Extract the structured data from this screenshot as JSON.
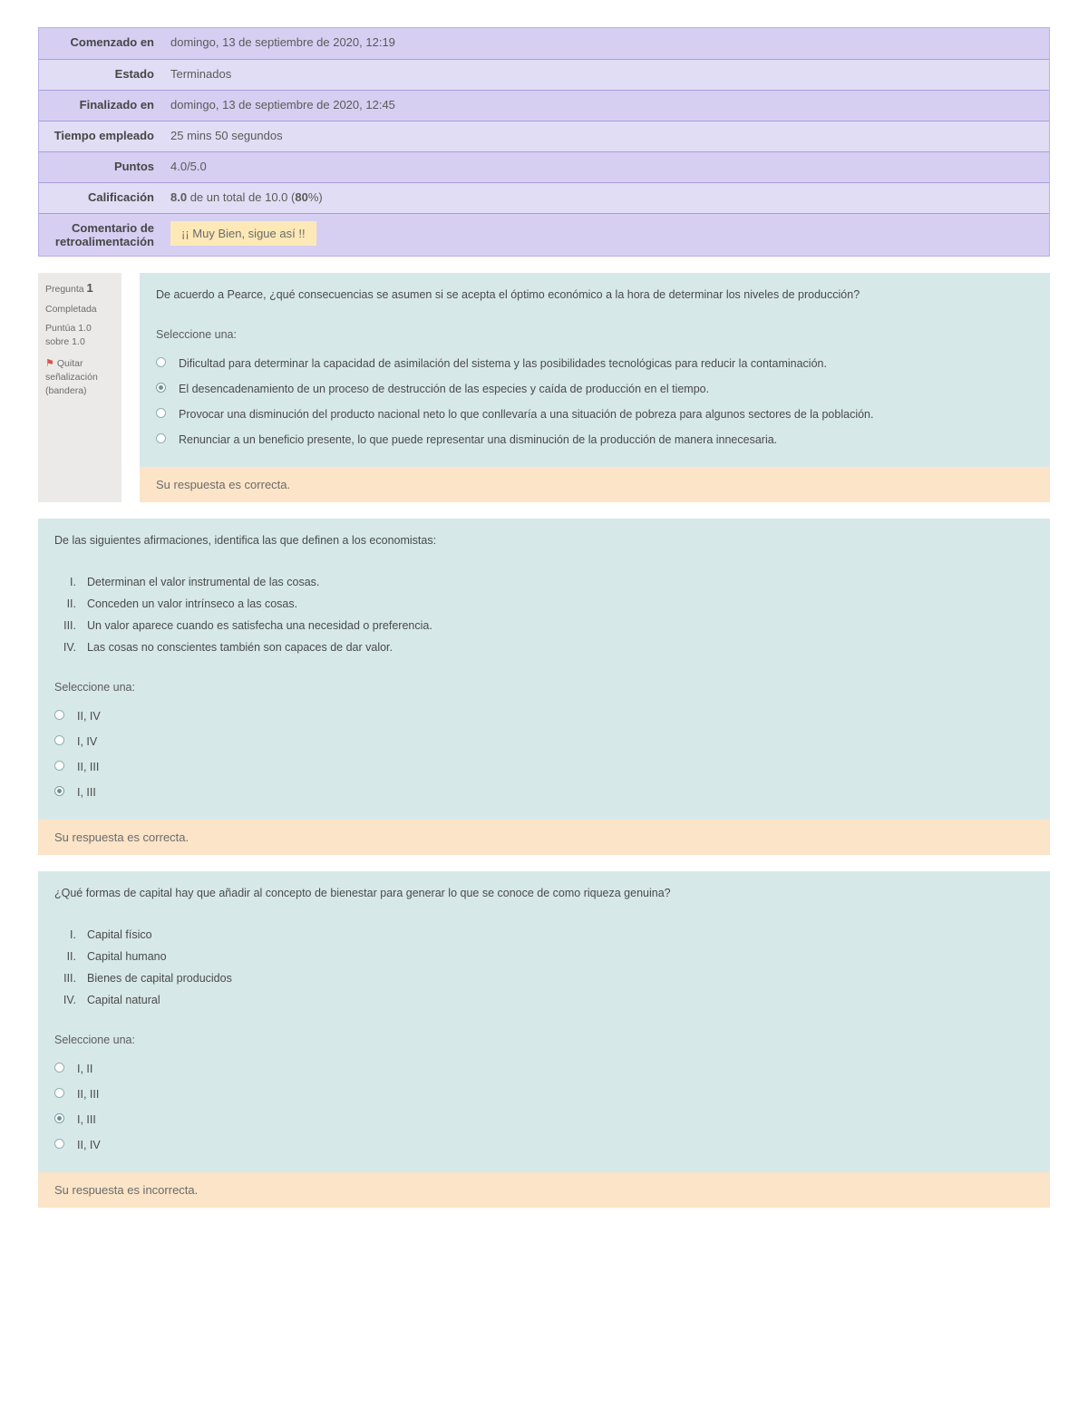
{
  "summary": {
    "rows": [
      {
        "label": "Comenzado en",
        "value": "domingo, 13 de septiembre de 2020, 12:19"
      },
      {
        "label": "Estado",
        "value": "Terminados"
      },
      {
        "label": "Finalizado en",
        "value": "domingo, 13 de septiembre de 2020, 12:45"
      },
      {
        "label": "Tiempo empleado",
        "value": "25 mins 50 segundos"
      },
      {
        "label": "Puntos",
        "value": "4.0/5.0"
      },
      {
        "label": "Calificación",
        "value_html": "<b>8.0</b> de un total de 10.0 (<b>80</b>%)"
      },
      {
        "label": "Comentario de retroalimentación",
        "chip": "¡¡ Muy Bien, sigue así !!"
      }
    ]
  },
  "select_one_label": "Seleccione una:",
  "q1": {
    "side": {
      "heading": "Pregunta",
      "num": "1",
      "state": "Completada",
      "grade": "Puntúa 1.0 sobre 1.0",
      "flag": "Quitar señalización (bandera)"
    },
    "prompt": "De acuerdo a Pearce, ¿qué consecuencias se asumen si se acepta el óptimo económico a la hora de determinar los niveles de producción?",
    "options": [
      "Dificultad para determinar la capacidad de asimilación del sistema y las posibilidades tecnológicas para reducir la contaminación.",
      "El desencadenamiento de un proceso de destrucción de las especies y caída de producción en el tiempo.",
      "Provocar una disminución del producto nacional neto lo que conllevaría a una situación de pobreza para algunos sectores de la población.",
      "Renunciar a un beneficio presente, lo que puede representar una disminución de la producción de manera innecesaria."
    ],
    "selected": 1,
    "feedback": "Su respuesta es correcta."
  },
  "q2": {
    "prompt": "De las siguientes afirmaciones, identifica las que definen a los economistas:",
    "statements": [
      "Determinan el valor instrumental de las cosas.",
      "Conceden un valor intrínseco a las cosas.",
      "Un valor aparece cuando es satisfecha una necesidad o preferencia.",
      "Las cosas no conscientes también son capaces de dar valor."
    ],
    "options": [
      "II, IV",
      "I, IV",
      "II, III",
      "I, III"
    ],
    "selected": 3,
    "feedback": "Su respuesta es correcta."
  },
  "q3": {
    "prompt": "¿Qué formas de capital hay que añadir al concepto de bienestar para generar lo que se conoce de como riqueza genuina?",
    "statements": [
      "Capital físico",
      "Capital humano",
      "Bienes de capital producidos",
      "Capital natural"
    ],
    "options": [
      "I, II",
      "II, III",
      "I, III",
      "II, IV"
    ],
    "selected": 2,
    "feedback": "Su respuesta es incorrecta."
  },
  "colors": {
    "summary_odd": "#d6cff2",
    "summary_even": "#e1ddf4",
    "summary_border": "#a89ddf",
    "chip_bg": "#fde9b7",
    "question_bg": "#d7e8e9",
    "feedback_bg": "#fbe4c7",
    "side_bg": "#eceae8",
    "radio_border": "#8fb0b3",
    "radio_dot": "#6d9194"
  }
}
